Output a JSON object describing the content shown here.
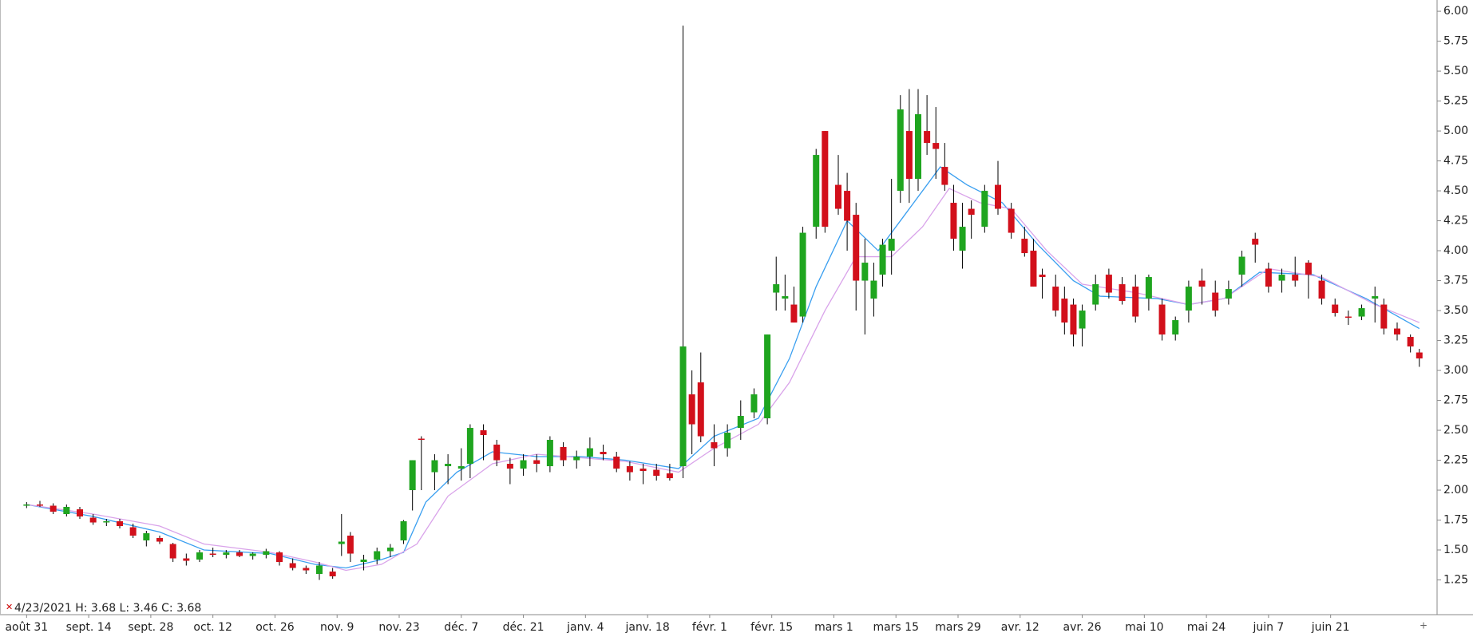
{
  "chart_data": {
    "type": "candlestick",
    "status_text": "4/23/2021  H: 3.68  L: 3.46  C: 3.68",
    "up_color": "#1fa51f",
    "down_color": "#d2101b",
    "wick_color": "#000000",
    "xlim": [
      -6,
      318
    ],
    "ylim": [
      0.96,
      6.094
    ],
    "xticks": [
      {
        "value": 0,
        "label": "août 31"
      },
      {
        "value": 14,
        "label": "sept. 14"
      },
      {
        "value": 28,
        "label": "sept. 28"
      },
      {
        "value": 42,
        "label": "oct. 12"
      },
      {
        "value": 56,
        "label": "oct. 26"
      },
      {
        "value": 70,
        "label": "nov. 9"
      },
      {
        "value": 84,
        "label": "nov. 23"
      },
      {
        "value": 98,
        "label": "déc. 7"
      },
      {
        "value": 112,
        "label": "déc. 21"
      },
      {
        "value": 126,
        "label": "janv. 4"
      },
      {
        "value": 140,
        "label": "janv. 18"
      },
      {
        "value": 154,
        "label": "févr. 1"
      },
      {
        "value": 168,
        "label": "févr. 15"
      },
      {
        "value": 182,
        "label": "mars 1"
      },
      {
        "value": 196,
        "label": "mars 15"
      },
      {
        "value": 210,
        "label": "mars 29"
      },
      {
        "value": 224,
        "label": "avr. 12"
      },
      {
        "value": 238,
        "label": "avr. 26"
      },
      {
        "value": 252,
        "label": "mai 10"
      },
      {
        "value": 266,
        "label": "mai 24"
      },
      {
        "value": 280,
        "label": "juin 7"
      },
      {
        "value": 294,
        "label": "juin 21"
      }
    ],
    "yticks": [
      {
        "value": 1.25,
        "label": "1.25"
      },
      {
        "value": 1.5,
        "label": "1.50"
      },
      {
        "value": 1.75,
        "label": "1.75"
      },
      {
        "value": 2,
        "label": "2.00"
      },
      {
        "value": 2.25,
        "label": "2.25"
      },
      {
        "value": 2.5,
        "label": "2.50"
      },
      {
        "value": 2.75,
        "label": "2.75"
      },
      {
        "value": 3,
        "label": "3.00"
      },
      {
        "value": 3.25,
        "label": "3.25"
      },
      {
        "value": 3.5,
        "label": "3.50"
      },
      {
        "value": 3.75,
        "label": "3.75"
      },
      {
        "value": 4,
        "label": "4.00"
      },
      {
        "value": 4.25,
        "label": "4.25"
      },
      {
        "value": 4.5,
        "label": "4.50"
      },
      {
        "value": 4.75,
        "label": "4.75"
      },
      {
        "value": 5,
        "label": "5.00"
      },
      {
        "value": 5.25,
        "label": "5.25"
      },
      {
        "value": 5.5,
        "label": "5.50"
      },
      {
        "value": 5.75,
        "label": "5.75"
      },
      {
        "value": 6,
        "label": "6.00"
      }
    ],
    "x": [
      0,
      3,
      6,
      9,
      12,
      15,
      18,
      21,
      24,
      27,
      30,
      33,
      36,
      39,
      42,
      45,
      48,
      51,
      54,
      57,
      60,
      63,
      66,
      69,
      71,
      73,
      76,
      79,
      82,
      85,
      87,
      89,
      92,
      95,
      98,
      100,
      103,
      106,
      109,
      112,
      115,
      118,
      121,
      124,
      127,
      130,
      133,
      136,
      139,
      142,
      145,
      148,
      150,
      152,
      155,
      158,
      161,
      164,
      167,
      169,
      171,
      173,
      175,
      178,
      180,
      183,
      185,
      187,
      189,
      191,
      193,
      195,
      197,
      199,
      201,
      203,
      205,
      207,
      209,
      211,
      213,
      216,
      219,
      222,
      225,
      227,
      229,
      232,
      234,
      236,
      238,
      241,
      244,
      247,
      250,
      253,
      256,
      259,
      262,
      265,
      268,
      271,
      274,
      277,
      280,
      283,
      286,
      289,
      292,
      295,
      298,
      301,
      304,
      306,
      309,
      312,
      314
    ],
    "open": [
      1.87,
      1.88,
      1.87,
      1.8,
      1.84,
      1.77,
      1.73,
      1.74,
      1.69,
      1.58,
      1.6,
      1.55,
      1.43,
      1.42,
      1.47,
      1.46,
      1.48,
      1.45,
      1.46,
      1.48,
      1.39,
      1.35,
      1.3,
      1.32,
      1.55,
      1.62,
      1.4,
      1.42,
      1.49,
      1.58,
      2.0,
      2.43,
      2.15,
      2.2,
      2.18,
      2.22,
      2.5,
      2.38,
      2.22,
      2.18,
      2.25,
      2.2,
      2.36,
      2.25,
      2.28,
      2.32,
      2.28,
      2.2,
      2.18,
      2.17,
      2.14,
      2.2,
      2.8,
      2.9,
      2.4,
      2.35,
      2.52,
      2.65,
      2.6,
      3.65,
      3.6,
      3.55,
      3.45,
      4.2,
      5.0,
      4.55,
      4.5,
      4.3,
      3.75,
      3.6,
      3.8,
      4.0,
      4.5,
      5.0,
      4.6,
      5.0,
      4.9,
      4.7,
      4.4,
      4.0,
      4.35,
      4.2,
      4.55,
      4.35,
      4.1,
      4.0,
      3.8,
      3.7,
      3.6,
      3.55,
      3.35,
      3.55,
      3.8,
      3.72,
      3.7,
      3.6,
      3.55,
      3.3,
      3.5,
      3.75,
      3.65,
      3.6,
      3.8,
      4.1,
      3.85,
      3.75,
      3.8,
      3.9,
      3.75,
      3.55,
      3.45,
      3.45,
      3.6,
      3.55,
      3.35,
      3.28,
      3.15
    ],
    "high": [
      1.9,
      1.91,
      1.89,
      1.88,
      1.86,
      1.8,
      1.76,
      1.76,
      1.72,
      1.66,
      1.62,
      1.56,
      1.47,
      1.5,
      1.52,
      1.5,
      1.5,
      1.48,
      1.51,
      1.49,
      1.43,
      1.37,
      1.4,
      1.35,
      1.8,
      1.65,
      1.46,
      1.52,
      1.55,
      1.75,
      2.25,
      2.45,
      2.3,
      2.3,
      2.35,
      2.55,
      2.55,
      2.42,
      2.27,
      2.3,
      2.3,
      2.45,
      2.4,
      2.33,
      2.44,
      2.38,
      2.32,
      2.24,
      2.22,
      2.22,
      2.22,
      5.88,
      3.0,
      3.15,
      2.55,
      2.55,
      2.75,
      2.85,
      3.3,
      3.95,
      3.8,
      3.7,
      4.2,
      4.85,
      5.0,
      4.8,
      4.65,
      4.4,
      4.1,
      3.9,
      4.1,
      4.6,
      5.3,
      5.35,
      5.35,
      5.3,
      5.2,
      4.9,
      4.55,
      4.4,
      4.42,
      4.55,
      4.75,
      4.4,
      4.2,
      4.1,
      3.85,
      3.8,
      3.7,
      3.6,
      3.55,
      3.8,
      3.85,
      3.78,
      3.8,
      3.8,
      3.6,
      3.45,
      3.75,
      3.85,
      3.75,
      3.75,
      4.0,
      4.15,
      3.9,
      3.85,
      3.95,
      3.92,
      3.8,
      3.6,
      3.5,
      3.55,
      3.7,
      3.6,
      3.4,
      3.3,
      3.18
    ],
    "low": [
      1.85,
      1.86,
      1.8,
      1.78,
      1.76,
      1.71,
      1.7,
      1.68,
      1.6,
      1.53,
      1.55,
      1.4,
      1.37,
      1.4,
      1.44,
      1.43,
      1.44,
      1.42,
      1.43,
      1.37,
      1.33,
      1.3,
      1.25,
      1.26,
      1.45,
      1.4,
      1.33,
      1.38,
      1.44,
      1.55,
      1.83,
      2.0,
      2.0,
      2.05,
      2.08,
      2.1,
      2.25,
      2.2,
      2.05,
      2.12,
      2.15,
      2.15,
      2.2,
      2.18,
      2.2,
      2.25,
      2.15,
      2.08,
      2.05,
      2.08,
      2.08,
      2.1,
      2.3,
      2.4,
      2.2,
      2.28,
      2.42,
      2.6,
      2.55,
      3.5,
      3.5,
      3.4,
      3.4,
      4.1,
      4.15,
      4.3,
      4.0,
      3.5,
      3.3,
      3.45,
      3.7,
      3.8,
      4.4,
      4.4,
      4.5,
      4.8,
      4.6,
      4.5,
      4.0,
      3.85,
      4.1,
      4.15,
      4.3,
      4.1,
      3.95,
      3.7,
      3.6,
      3.45,
      3.3,
      3.2,
      3.2,
      3.5,
      3.6,
      3.55,
      3.4,
      3.5,
      3.25,
      3.25,
      3.4,
      3.55,
      3.45,
      3.55,
      3.7,
      3.9,
      3.65,
      3.65,
      3.7,
      3.6,
      3.55,
      3.45,
      3.38,
      3.42,
      3.4,
      3.3,
      3.25,
      3.15,
      3.03
    ],
    "close": [
      1.88,
      1.87,
      1.82,
      1.86,
      1.78,
      1.73,
      1.74,
      1.7,
      1.62,
      1.64,
      1.57,
      1.43,
      1.41,
      1.48,
      1.46,
      1.48,
      1.45,
      1.47,
      1.49,
      1.4,
      1.35,
      1.33,
      1.37,
      1.28,
      1.57,
      1.47,
      1.42,
      1.49,
      1.52,
      1.74,
      2.25,
      2.42,
      2.25,
      2.22,
      2.2,
      2.52,
      2.46,
      2.25,
      2.18,
      2.25,
      2.22,
      2.42,
      2.25,
      2.28,
      2.35,
      2.3,
      2.18,
      2.15,
      2.16,
      2.12,
      2.1,
      3.2,
      2.55,
      2.45,
      2.35,
      2.48,
      2.62,
      2.8,
      3.3,
      3.72,
      3.62,
      3.4,
      4.15,
      4.8,
      4.2,
      4.35,
      4.25,
      3.75,
      3.9,
      3.75,
      4.05,
      4.1,
      5.18,
      4.6,
      5.14,
      4.9,
      4.85,
      4.55,
      4.1,
      4.2,
      4.3,
      4.5,
      4.35,
      4.15,
      3.98,
      3.7,
      3.78,
      3.5,
      3.4,
      3.3,
      3.5,
      3.72,
      3.65,
      3.58,
      3.45,
      3.78,
      3.3,
      3.42,
      3.7,
      3.7,
      3.5,
      3.68,
      3.95,
      4.05,
      3.7,
      3.8,
      3.75,
      3.8,
      3.6,
      3.48,
      3.44,
      3.52,
      3.62,
      3.35,
      3.3,
      3.2,
      3.1
    ],
    "series": [
      {
        "color": "#3a9ff0",
        "x": [
          0,
          15,
          30,
          40,
          55,
          65,
          72,
          80,
          85,
          90,
          97,
          105,
          115,
          125,
          135,
          147,
          155,
          165,
          172,
          178,
          185,
          192,
          198,
          206,
          212,
          220,
          228,
          236,
          242,
          255,
          262,
          270,
          278,
          290,
          302,
          314
        ],
        "values": [
          1.88,
          1.78,
          1.65,
          1.5,
          1.47,
          1.38,
          1.35,
          1.42,
          1.48,
          1.9,
          2.15,
          2.32,
          2.28,
          2.28,
          2.25,
          2.18,
          2.45,
          2.6,
          3.1,
          3.7,
          4.25,
          4.0,
          4.3,
          4.7,
          4.55,
          4.4,
          4.05,
          3.75,
          3.62,
          3.6,
          3.55,
          3.6,
          3.82,
          3.8,
          3.6,
          3.35
        ]
      },
      {
        "color": "#d9a3ea",
        "x": [
          0,
          15,
          30,
          40,
          55,
          65,
          72,
          80,
          88,
          95,
          105,
          115,
          125,
          135,
          147,
          155,
          165,
          172,
          180,
          187,
          195,
          202,
          208,
          215,
          222,
          230,
          238,
          250,
          262,
          270,
          280,
          292,
          304,
          314
        ],
        "values": [
          1.88,
          1.8,
          1.7,
          1.55,
          1.48,
          1.4,
          1.33,
          1.38,
          1.55,
          1.95,
          2.22,
          2.3,
          2.27,
          2.24,
          2.15,
          2.35,
          2.55,
          2.9,
          3.5,
          3.95,
          3.95,
          4.2,
          4.52,
          4.4,
          4.35,
          4.0,
          3.72,
          3.65,
          3.55,
          3.6,
          3.85,
          3.78,
          3.55,
          3.4
        ]
      }
    ]
  }
}
